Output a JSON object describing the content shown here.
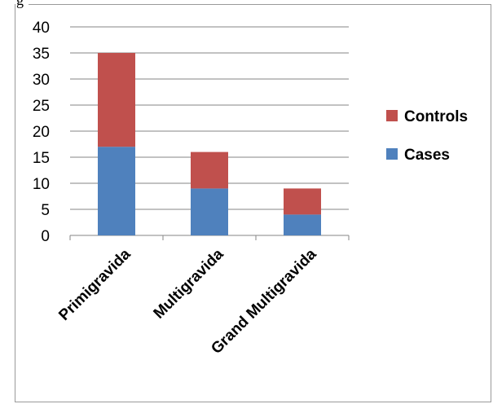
{
  "header_fragment": "g",
  "chart_data": {
    "type": "bar",
    "stacked": true,
    "categories": [
      "Primigravida",
      "Multigravida",
      "Grand Multigravida"
    ],
    "series": [
      {
        "name": "Cases",
        "values": [
          17,
          9,
          4
        ],
        "color": "#4f81bd"
      },
      {
        "name": "Controls",
        "values": [
          18,
          7,
          5
        ],
        "color": "#c0504d"
      }
    ],
    "ylim": [
      0,
      40
    ],
    "yticks": [
      "0",
      "5",
      "10",
      "15",
      "20",
      "25",
      "30",
      "35",
      "40"
    ],
    "grid": true,
    "gridColor": "#868686",
    "legend_position": "right",
    "legend_order": [
      "Controls",
      "Cases"
    ],
    "category_label_rotation": -45
  }
}
